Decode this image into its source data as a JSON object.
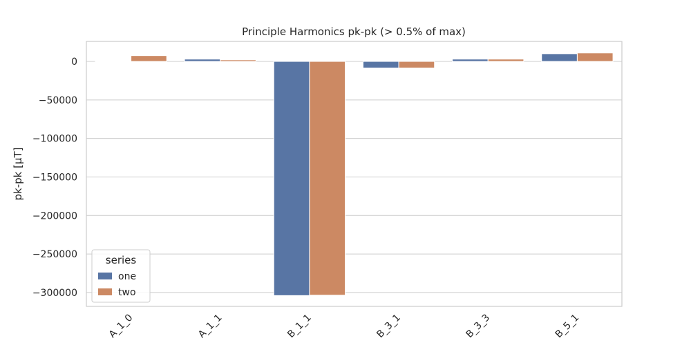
{
  "chart_data": {
    "type": "bar",
    "title": "Principle Harmonics pk-pk (> 0.5% of max)",
    "xlabel": "",
    "ylabel": "pk-pk [µT]",
    "categories": [
      "A_1_0",
      "A_1_1",
      "B_1_1",
      "B_3_1",
      "B_3_3",
      "B_5_1"
    ],
    "series": [
      {
        "name": "one",
        "color": "#5875a4",
        "values": [
          -500,
          3000,
          -304000,
          -8500,
          3000,
          10000
        ]
      },
      {
        "name": "two",
        "color": "#cc8963",
        "values": [
          7500,
          2000,
          -303500,
          -8500,
          3000,
          11000
        ]
      }
    ],
    "ylim": [
      -318000,
      26000
    ],
    "yticks": [
      0,
      -50000,
      -100000,
      -150000,
      -200000,
      -250000,
      -300000
    ],
    "ytick_labels": [
      "0",
      "−50000",
      "−100000",
      "−150000",
      "−200000",
      "−250000",
      "−300000"
    ],
    "grid": true,
    "legend": {
      "title": "series",
      "placement": "lower-left"
    },
    "colors": {
      "grid": "#cccccc",
      "frame": "#cccccc",
      "background": "#ffffff"
    }
  }
}
